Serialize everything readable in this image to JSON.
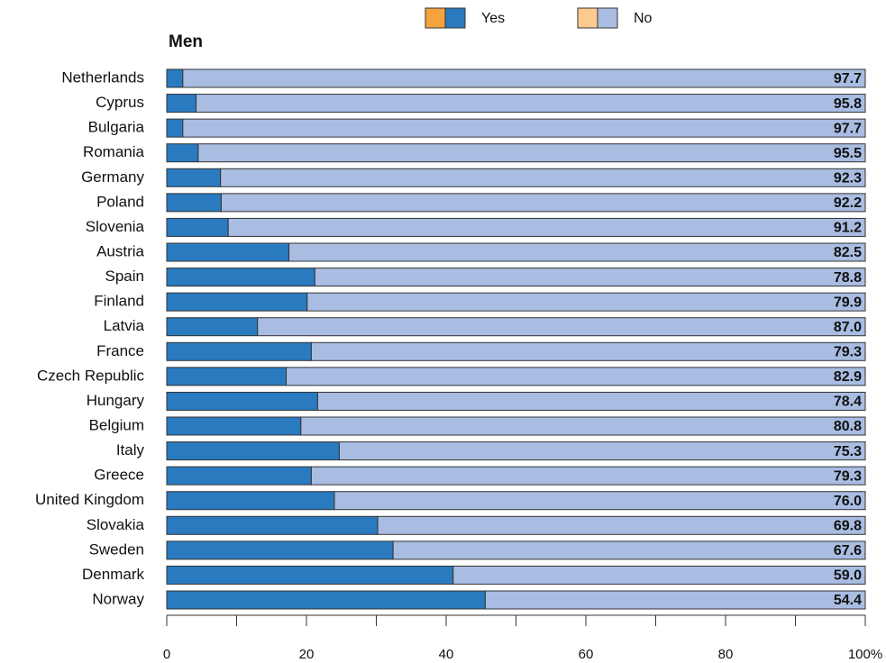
{
  "chart_data": {
    "type": "stacked-barh",
    "title": "Men",
    "categories": [
      "Netherlands",
      "Cyprus",
      "Bulgaria",
      "Romania",
      "Germany",
      "Poland",
      "Slovenia",
      "Austria",
      "Spain",
      "Finland",
      "Latvia",
      "France",
      "Czech Republic",
      "Hungary",
      "Belgium",
      "Italy",
      "Greece",
      "United Kingdom",
      "Slovakia",
      "Sweden",
      "Denmark",
      "Norway"
    ],
    "series": [
      {
        "name": "Yes",
        "color": "#2a7abf",
        "legend_colors": [
          "#f5a33c",
          "#2a7abf"
        ],
        "values": [
          2.3,
          4.2,
          2.3,
          4.5,
          7.7,
          7.8,
          8.8,
          17.5,
          21.2,
          20.1,
          13.0,
          20.7,
          17.1,
          21.6,
          19.2,
          24.7,
          20.7,
          24.0,
          30.2,
          32.4,
          41.0,
          45.6
        ]
      },
      {
        "name": "No",
        "color": "#a9bde2",
        "legend_colors": [
          "#fdca8f",
          "#a9bde2"
        ],
        "values": [
          97.7,
          95.8,
          97.7,
          95.5,
          92.3,
          92.2,
          91.2,
          82.5,
          78.8,
          79.9,
          87.0,
          79.3,
          82.9,
          78.4,
          80.8,
          75.3,
          79.3,
          76.0,
          69.8,
          67.6,
          59.0,
          54.4
        ],
        "value_labels": [
          "97.7",
          "95.8",
          "97.7",
          "95.5",
          "92.3",
          "92.2",
          "91.2",
          "82.5",
          "78.8",
          "79.9",
          "87.0",
          "79.3",
          "82.9",
          "78.4",
          "80.8",
          "75.3",
          "79.3",
          "76.0",
          "69.8",
          "67.6",
          "59.0",
          "54.4"
        ]
      }
    ],
    "xlim": [
      0,
      100
    ],
    "xticks": [
      0,
      20,
      40,
      60,
      80,
      {
        "value": 100,
        "label": "100%"
      }
    ],
    "xminor_ticks": [
      10,
      30,
      50,
      70,
      90
    ]
  }
}
